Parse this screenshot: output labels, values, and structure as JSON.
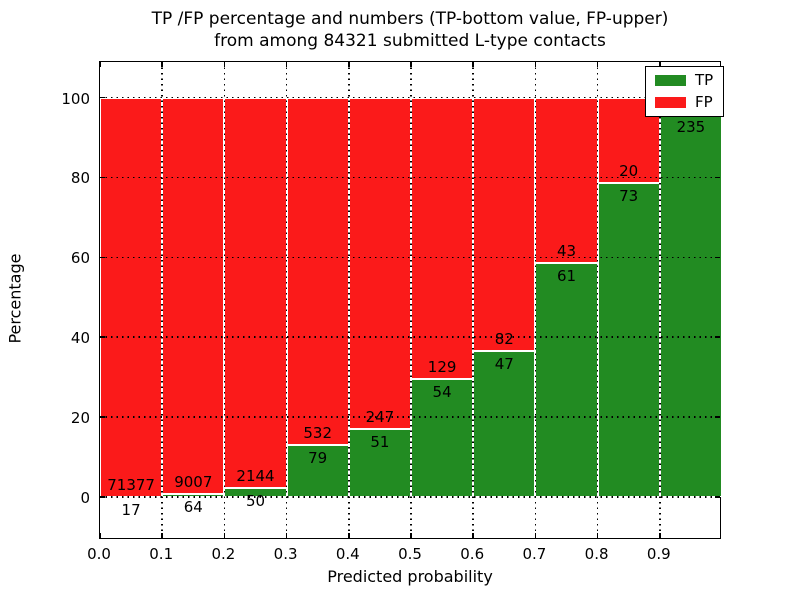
{
  "figure": {
    "title_line1": "TP /FP percentage and numbers (TP-bottom value, FP-upper)",
    "title_line2": "from among 84321 submitted L-type contacts",
    "xlabel": "Predicted probability",
    "ylabel": "Percentage",
    "legend": {
      "tp_label": "TP",
      "fp_label": "FP"
    },
    "colors": {
      "tp_green": "#228b22",
      "fp_red": "#fb1a1a",
      "grid": "#000000",
      "background": "#ffffff"
    }
  },
  "chart_data": {
    "type": "bar",
    "stacked": true,
    "normalized_to_percent": true,
    "title": "TP /FP percentage and numbers (TP-bottom value, FP-upper) from among 84321 submitted L-type contacts",
    "xlabel": "Predicted probability",
    "ylabel": "Percentage",
    "total_submitted": 84321,
    "x_bin_edges": [
      0.0,
      0.1,
      0.2,
      0.3,
      0.4,
      0.5,
      0.6,
      0.7,
      0.8,
      0.9,
      1.0
    ],
    "x_tick_labels": [
      "0.0",
      "0.1",
      "0.2",
      "0.3",
      "0.4",
      "0.5",
      "0.6",
      "0.7",
      "0.8",
      "0.9"
    ],
    "y_ticks": [
      0,
      20,
      40,
      60,
      80,
      100
    ],
    "y_tick_labels": [
      "0",
      "20",
      "40",
      "60",
      "80",
      "100"
    ],
    "xlim": [
      0.0,
      1.0
    ],
    "ylim": [
      -10.3,
      109.4
    ],
    "grid": "dotted black, horizontal at y ticks and vertical at bin edges",
    "legend_position": "upper right",
    "series": [
      {
        "name": "TP",
        "color": "#228b22",
        "counts": [
          17,
          64,
          50,
          79,
          51,
          54,
          47,
          61,
          73,
          235
        ],
        "pct": [
          0.02,
          0.71,
          2.28,
          12.93,
          17.11,
          29.51,
          36.43,
          58.65,
          78.49,
          95.9
        ]
      },
      {
        "name": "FP",
        "color": "#fb1a1a",
        "counts": [
          71377,
          9007,
          2144,
          532,
          247,
          129,
          82,
          43,
          20,
          null
        ],
        "pct": [
          99.98,
          99.29,
          97.72,
          87.07,
          82.89,
          70.49,
          63.57,
          41.35,
          21.51,
          4.1
        ],
        "note_last_bin": "FP count label of 0.9-1.0 bin is hidden behind the legend"
      }
    ]
  }
}
